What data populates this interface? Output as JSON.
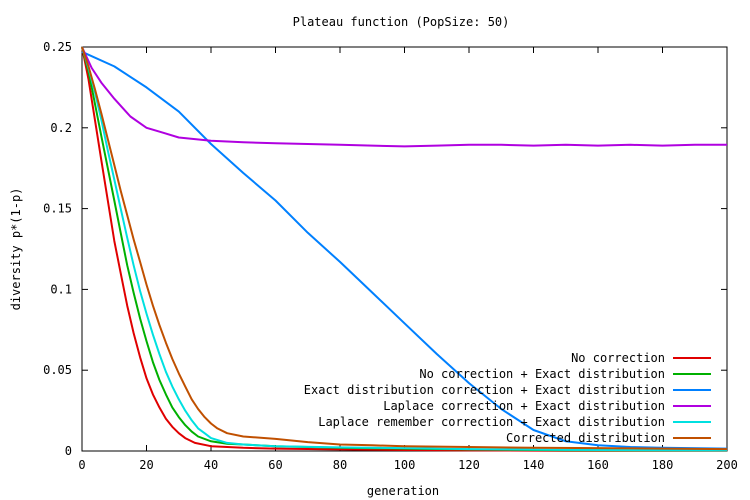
{
  "chart_data": {
    "type": "line",
    "title": "Plateau function (PopSize: 50)",
    "xlabel": "generation",
    "ylabel": "diversity p*(1-p)",
    "xlim": [
      0,
      200
    ],
    "ylim": [
      0,
      0.25
    ],
    "x_ticks": [
      0,
      20,
      40,
      60,
      80,
      100,
      120,
      140,
      160,
      180,
      200
    ],
    "y_ticks": [
      0,
      0.05,
      0.1,
      0.15,
      0.2,
      0.25
    ],
    "x_tick_labels": [
      "0",
      "20",
      "40",
      "60",
      "80",
      "100",
      "120",
      "140",
      "160",
      "180",
      "200"
    ],
    "y_tick_labels": [
      "0",
      "0.05",
      "0.1",
      "0.15",
      "0.2",
      "0.25"
    ],
    "grid": false,
    "legend_position": "bottom-right",
    "series": [
      {
        "name": "No correction",
        "color": "#e00000",
        "points": [
          [
            0,
            0.25
          ],
          [
            2,
            0.23
          ],
          [
            4,
            0.205
          ],
          [
            6,
            0.18
          ],
          [
            8,
            0.155
          ],
          [
            10,
            0.13
          ],
          [
            12,
            0.11
          ],
          [
            14,
            0.09
          ],
          [
            16,
            0.073
          ],
          [
            18,
            0.058
          ],
          [
            20,
            0.045
          ],
          [
            22,
            0.035
          ],
          [
            24,
            0.027
          ],
          [
            26,
            0.02
          ],
          [
            28,
            0.015
          ],
          [
            30,
            0.011
          ],
          [
            32,
            0.008
          ],
          [
            35,
            0.005
          ],
          [
            40,
            0.003
          ],
          [
            50,
            0.002
          ],
          [
            60,
            0.0015
          ],
          [
            80,
            0.001
          ],
          [
            100,
            0.0006
          ],
          [
            120,
            0.0004
          ],
          [
            150,
            0.0002
          ],
          [
            200,
            0.0001
          ]
        ]
      },
      {
        "name": "No correction + Exact distribution",
        "color": "#00b000",
        "points": [
          [
            0,
            0.25
          ],
          [
            2,
            0.235
          ],
          [
            4,
            0.215
          ],
          [
            6,
            0.195
          ],
          [
            8,
            0.175
          ],
          [
            10,
            0.155
          ],
          [
            12,
            0.135
          ],
          [
            14,
            0.115
          ],
          [
            16,
            0.098
          ],
          [
            18,
            0.082
          ],
          [
            20,
            0.068
          ],
          [
            22,
            0.055
          ],
          [
            24,
            0.044
          ],
          [
            26,
            0.035
          ],
          [
            28,
            0.027
          ],
          [
            30,
            0.021
          ],
          [
            32,
            0.016
          ],
          [
            34,
            0.012
          ],
          [
            36,
            0.009
          ],
          [
            40,
            0.006
          ],
          [
            45,
            0.0045
          ],
          [
            50,
            0.004
          ],
          [
            60,
            0.003
          ],
          [
            80,
            0.002
          ],
          [
            100,
            0.0015
          ],
          [
            120,
            0.001
          ],
          [
            150,
            0.0005
          ],
          [
            200,
            0.0003
          ]
        ]
      },
      {
        "name": "Exact distribution correction + Exact distribution",
        "color": "#0080ff",
        "points": [
          [
            0,
            0.247
          ],
          [
            10,
            0.238
          ],
          [
            20,
            0.225
          ],
          [
            30,
            0.21
          ],
          [
            40,
            0.19
          ],
          [
            50,
            0.172
          ],
          [
            60,
            0.155
          ],
          [
            70,
            0.135
          ],
          [
            80,
            0.117
          ],
          [
            90,
            0.098
          ],
          [
            100,
            0.079
          ],
          [
            110,
            0.06
          ],
          [
            120,
            0.042
          ],
          [
            130,
            0.026
          ],
          [
            140,
            0.013
          ],
          [
            150,
            0.006
          ],
          [
            160,
            0.0035
          ],
          [
            170,
            0.0025
          ],
          [
            180,
            0.002
          ],
          [
            200,
            0.0015
          ]
        ]
      },
      {
        "name": "Laplace correction + Exact distribution",
        "color": "#b000e0",
        "points": [
          [
            0,
            0.25
          ],
          [
            3,
            0.237
          ],
          [
            6,
            0.228
          ],
          [
            10,
            0.218
          ],
          [
            15,
            0.207
          ],
          [
            20,
            0.2
          ],
          [
            25,
            0.197
          ],
          [
            30,
            0.194
          ],
          [
            35,
            0.193
          ],
          [
            40,
            0.192
          ],
          [
            50,
            0.191
          ],
          [
            60,
            0.1905
          ],
          [
            70,
            0.19
          ],
          [
            80,
            0.1895
          ],
          [
            90,
            0.189
          ],
          [
            100,
            0.1885
          ],
          [
            110,
            0.189
          ],
          [
            120,
            0.1895
          ],
          [
            130,
            0.1895
          ],
          [
            140,
            0.189
          ],
          [
            150,
            0.1895
          ],
          [
            160,
            0.189
          ],
          [
            170,
            0.1895
          ],
          [
            180,
            0.189
          ],
          [
            190,
            0.1895
          ],
          [
            200,
            0.1895
          ]
        ]
      },
      {
        "name": "Laplace remember correction + Exact distribution",
        "color": "#00e0e0",
        "points": [
          [
            0,
            0.25
          ],
          [
            2,
            0.237
          ],
          [
            4,
            0.222
          ],
          [
            6,
            0.205
          ],
          [
            8,
            0.186
          ],
          [
            10,
            0.168
          ],
          [
            12,
            0.15
          ],
          [
            14,
            0.132
          ],
          [
            16,
            0.115
          ],
          [
            18,
            0.099
          ],
          [
            20,
            0.085
          ],
          [
            22,
            0.072
          ],
          [
            24,
            0.06
          ],
          [
            26,
            0.049
          ],
          [
            28,
            0.04
          ],
          [
            30,
            0.032
          ],
          [
            32,
            0.025
          ],
          [
            34,
            0.019
          ],
          [
            36,
            0.014
          ],
          [
            38,
            0.011
          ],
          [
            40,
            0.008
          ],
          [
            45,
            0.005
          ],
          [
            50,
            0.004
          ],
          [
            60,
            0.003
          ],
          [
            80,
            0.0022
          ],
          [
            100,
            0.0018
          ],
          [
            120,
            0.0012
          ],
          [
            150,
            0.0007
          ],
          [
            200,
            0.0004
          ]
        ]
      },
      {
        "name": "Corrected distribution",
        "color": "#c05000",
        "points": [
          [
            0,
            0.25
          ],
          [
            2,
            0.238
          ],
          [
            4,
            0.224
          ],
          [
            6,
            0.209
          ],
          [
            8,
            0.193
          ],
          [
            10,
            0.177
          ],
          [
            12,
            0.161
          ],
          [
            14,
            0.146
          ],
          [
            16,
            0.131
          ],
          [
            18,
            0.117
          ],
          [
            20,
            0.103
          ],
          [
            22,
            0.09
          ],
          [
            24,
            0.078
          ],
          [
            26,
            0.067
          ],
          [
            28,
            0.057
          ],
          [
            30,
            0.048
          ],
          [
            32,
            0.04
          ],
          [
            34,
            0.032
          ],
          [
            36,
            0.026
          ],
          [
            38,
            0.021
          ],
          [
            40,
            0.017
          ],
          [
            42,
            0.014
          ],
          [
            45,
            0.011
          ],
          [
            50,
            0.009
          ],
          [
            60,
            0.0075
          ],
          [
            70,
            0.0055
          ],
          [
            80,
            0.004
          ],
          [
            90,
            0.0035
          ],
          [
            100,
            0.003
          ],
          [
            120,
            0.0025
          ],
          [
            140,
            0.002
          ],
          [
            160,
            0.0018
          ],
          [
            180,
            0.0015
          ],
          [
            200,
            0.0012
          ]
        ]
      }
    ]
  }
}
